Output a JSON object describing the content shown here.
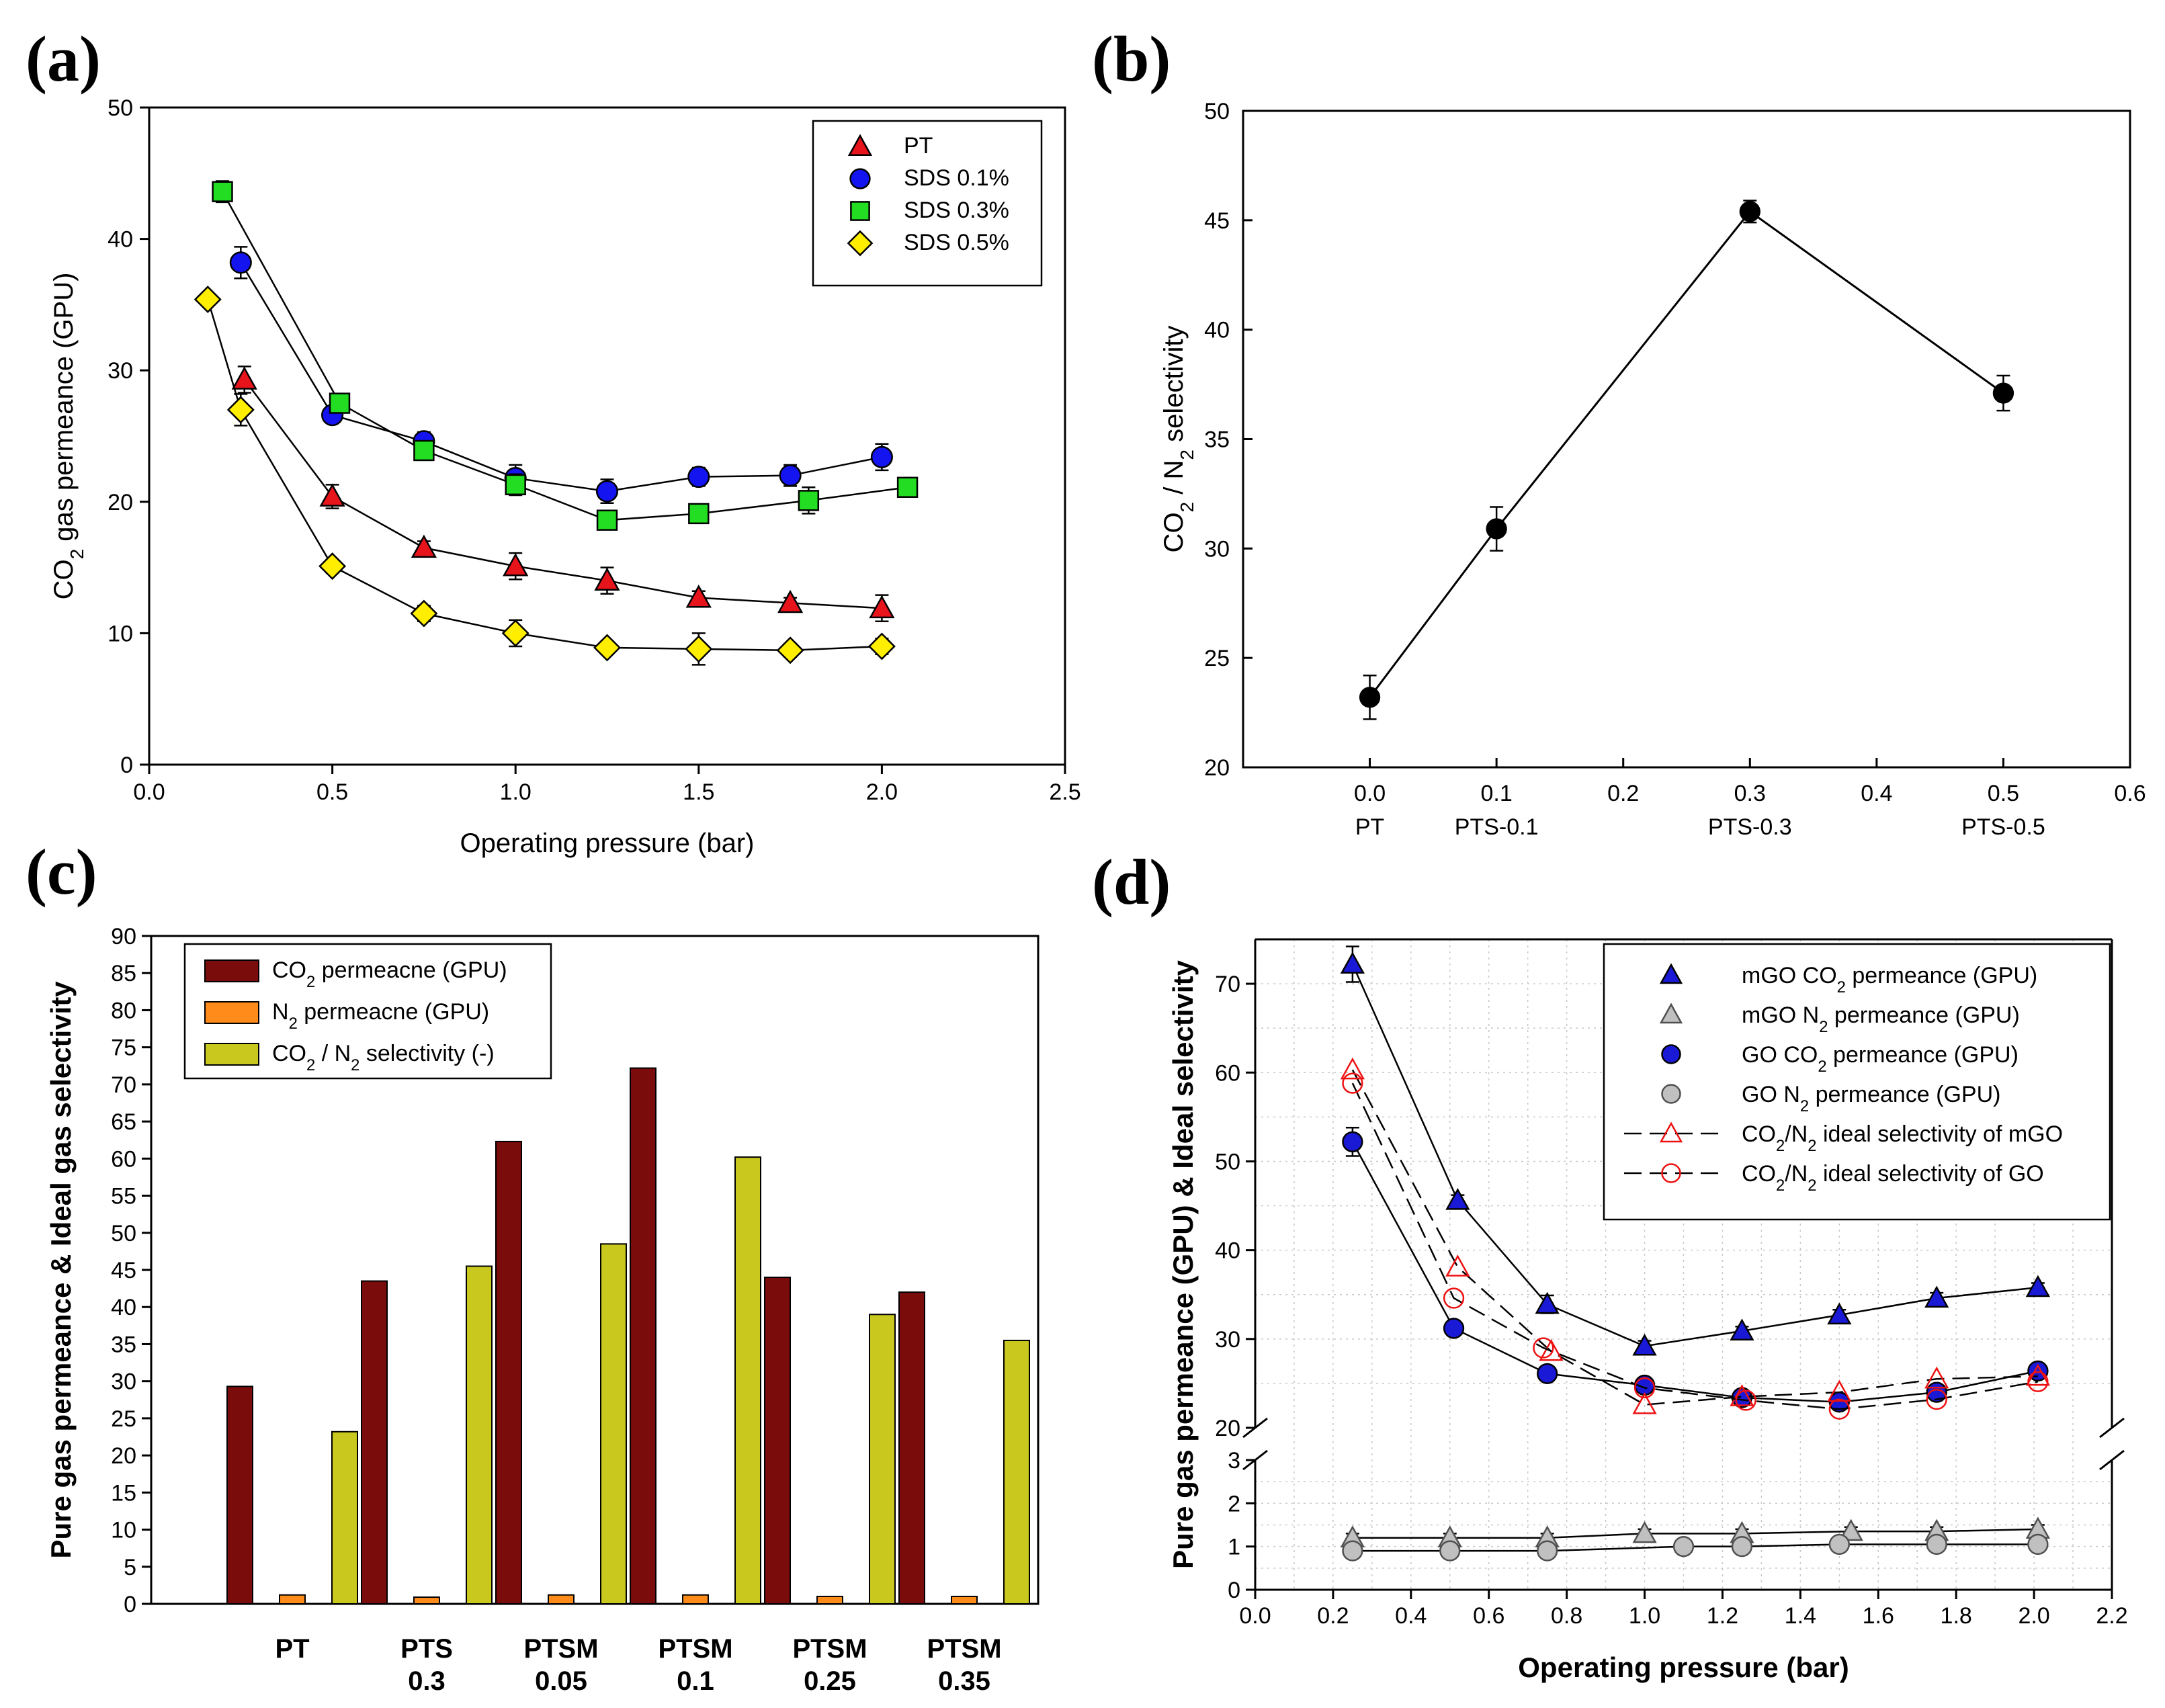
{
  "panels": {
    "a": "(a)",
    "b": "(b)",
    "c": "(c)",
    "d": "(d)"
  },
  "chart_data": [
    {
      "id": "a",
      "type": "line",
      "xlabel": "Operating pressure (bar)",
      "ylabel": "CO2 gas permeance (GPU)",
      "xlim": [
        0,
        2.5
      ],
      "ylim": [
        0,
        50
      ],
      "xticks": [
        "0.0",
        "0.5",
        "1.0",
        "1.5",
        "2.0",
        "2.5"
      ],
      "yticks": [
        "0",
        "10",
        "20",
        "30",
        "40",
        "50"
      ],
      "legend_position": "top-right",
      "series": [
        {
          "name": "PT",
          "marker": "triangle",
          "color": "#e8141c",
          "x": [
            0.26,
            0.5,
            0.75,
            1.0,
            1.25,
            1.5,
            1.75,
            2.0
          ],
          "y": [
            29.3,
            20.4,
            16.5,
            15.1,
            14.0,
            12.7,
            12.3,
            11.9
          ],
          "err": [
            1.0,
            0.9,
            0.5,
            1.0,
            1.0,
            0.5,
            0.4,
            1.0
          ]
        },
        {
          "name": "SDS 0.1%",
          "marker": "circle",
          "color": "#1414f0",
          "x": [
            0.25,
            0.5,
            0.75,
            1.0,
            1.25,
            1.5,
            1.75,
            2.0
          ],
          "y": [
            38.2,
            26.6,
            24.6,
            21.8,
            20.8,
            21.9,
            22.0,
            23.4
          ],
          "err": [
            1.2,
            0.6,
            0.7,
            1.0,
            0.9,
            0.7,
            0.8,
            1.0
          ]
        },
        {
          "name": "SDS 0.3%",
          "marker": "square",
          "color": "#22dd22",
          "x": [
            0.2,
            0.52,
            0.75,
            1.0,
            1.25,
            1.5,
            1.8,
            2.07
          ],
          "y": [
            43.6,
            27.5,
            23.9,
            21.3,
            18.6,
            19.1,
            20.1,
            21.1
          ],
          "err": [
            0.8,
            0.6,
            0.7,
            0.8,
            0.6,
            0.6,
            1.0,
            0.5
          ]
        },
        {
          "name": "SDS 0.5%",
          "marker": "diamond",
          "color": "#ffee00",
          "x": [
            0.16,
            0.25,
            0.5,
            0.75,
            1.0,
            1.25,
            1.5,
            1.75,
            2.0
          ],
          "y": [
            35.4,
            27.0,
            15.1,
            11.5,
            10.0,
            8.9,
            8.8,
            8.7,
            9.0
          ],
          "err": [
            0.3,
            1.2,
            0.5,
            0.6,
            1.0,
            0.5,
            1.2,
            0.5,
            0.6
          ]
        }
      ]
    },
    {
      "id": "b",
      "type": "line",
      "xlabel": "",
      "ylabel": "CO2 / N2 selectivity",
      "xlim": [
        -0.1,
        0.6
      ],
      "ylim": [
        20,
        50
      ],
      "xticks": [
        "0.0",
        "0.1",
        "0.2",
        "0.3",
        "0.4",
        "0.5",
        "0.6"
      ],
      "yticks": [
        "20",
        "25",
        "30",
        "35",
        "40",
        "45",
        "50"
      ],
      "category_labels": [
        {
          "x": 0.0,
          "label": "PT"
        },
        {
          "x": 0.1,
          "label": "PTS-0.1"
        },
        {
          "x": 0.3,
          "label": "PTS-0.3"
        },
        {
          "x": 0.5,
          "label": "PTS-0.5"
        }
      ],
      "series": [
        {
          "name": "selectivity",
          "marker": "circle",
          "color": "#000000",
          "x": [
            0.0,
            0.1,
            0.3,
            0.5
          ],
          "y": [
            23.2,
            30.9,
            45.4,
            37.1
          ],
          "err": [
            1.0,
            1.0,
            0.5,
            0.8
          ]
        }
      ]
    },
    {
      "id": "c",
      "type": "bar",
      "xlabel": "",
      "ylabel": "Pure gas permeance & Ideal gas selectivity",
      "ylim": [
        0,
        90
      ],
      "yticks": [
        "0",
        "5",
        "10",
        "15",
        "20",
        "25",
        "30",
        "35",
        "40",
        "45",
        "50",
        "55",
        "60",
        "65",
        "70",
        "75",
        "80",
        "85",
        "90"
      ],
      "categories": [
        {
          "line1": "PT",
          "line2": ""
        },
        {
          "line1": "PTS",
          "line2": "0.3"
        },
        {
          "line1": "PTSM",
          "line2": "0.05"
        },
        {
          "line1": "PTSM",
          "line2": "0.1"
        },
        {
          "line1": "PTSM",
          "line2": "0.25"
        },
        {
          "line1": "PTSM",
          "line2": "0.35"
        }
      ],
      "legend_position": "top-left",
      "series": [
        {
          "name": "CO2 permeacne  (GPU)",
          "color": "#7b0c0c",
          "values": [
            29.3,
            43.5,
            62.3,
            72.2,
            44.0,
            42.0
          ]
        },
        {
          "name": "N2 permeacne  (GPU)",
          "color": "#ff8c1a",
          "values": [
            1.2,
            0.9,
            1.2,
            1.2,
            1.0,
            1.0
          ]
        },
        {
          "name": "CO2 / N2 selectivity (-)",
          "color": "#c8c81e",
          "values": [
            23.2,
            45.5,
            48.5,
            60.2,
            39.0,
            35.5
          ]
        }
      ]
    },
    {
      "id": "d",
      "type": "line",
      "xlabel": "Operating pressure (bar)",
      "ylabel": "Pure gas permeance (GPU) & Ideal selectivity",
      "xlim": [
        0,
        2.2
      ],
      "ylim_upper": [
        20,
        75
      ],
      "ylim_lower": [
        0,
        3
      ],
      "xticks": [
        "0.0",
        "0.2",
        "0.4",
        "0.6",
        "0.8",
        "1.0",
        "1.2",
        "1.4",
        "1.6",
        "1.8",
        "2.0",
        "2.2"
      ],
      "yticks_upper": [
        "20",
        "30",
        "40",
        "50",
        "60",
        "70"
      ],
      "yticks_lower": [
        "0",
        "1",
        "2",
        "3"
      ],
      "legend_position": "top-right",
      "series": [
        {
          "name": "mGO CO2 permeance (GPU)",
          "marker": "triangle",
          "fill": "#1a1ad6",
          "stroke": "#000000",
          "dash": false,
          "x": [
            0.25,
            0.52,
            0.75,
            1.0,
            1.25,
            1.5,
            1.75,
            2.01
          ],
          "y": [
            72.2,
            45.6,
            33.9,
            29.2,
            30.9,
            32.7,
            34.6,
            35.8
          ],
          "err": [
            2.0,
            0.6,
            1.0,
            0.6,
            0.5,
            0.6,
            0.6,
            0.5
          ]
        },
        {
          "name": "mGO    N2 permeance (GPU)",
          "marker": "triangle",
          "fill": "#c0c0c0",
          "stroke": "#505050",
          "dash": false,
          "x": [
            0.25,
            0.5,
            0.75,
            1.0,
            1.25,
            1.53,
            1.75,
            2.01
          ],
          "y": [
            1.2,
            1.2,
            1.2,
            1.3,
            1.3,
            1.35,
            1.35,
            1.4
          ],
          "err": [
            0.1,
            0.1,
            0.1,
            0.1,
            0.1,
            0.1,
            0.1,
            0.1
          ]
        },
        {
          "name": "GO     CO2 permeance (GPU)",
          "marker": "circle",
          "fill": "#1a1ad6",
          "stroke": "#000000",
          "dash": false,
          "x": [
            0.25,
            0.51,
            0.75,
            1.0,
            1.25,
            1.5,
            1.75,
            2.01
          ],
          "y": [
            52.2,
            31.2,
            26.1,
            24.8,
            23.4,
            22.9,
            24.0,
            26.4
          ],
          "err": [
            1.6,
            0.5,
            0.5,
            0.6,
            0.5,
            0.6,
            0.6,
            0.5
          ]
        },
        {
          "name": "GO          N2 permeance (GPU)",
          "marker": "circle",
          "fill": "#c0c0c0",
          "stroke": "#505050",
          "dash": false,
          "x": [
            0.25,
            0.5,
            0.75,
            1.1,
            1.25,
            1.5,
            1.75,
            2.01
          ],
          "y": [
            0.9,
            0.9,
            0.9,
            1.0,
            1.0,
            1.05,
            1.05,
            1.05
          ],
          "err": [
            0.1,
            0.1,
            0.1,
            0.1,
            0.1,
            0.1,
            0.1,
            0.1
          ]
        },
        {
          "name": "CO2/N2 ideal selectivity of mGO",
          "marker": "open-triangle",
          "fill": "none",
          "stroke": "#ee1111",
          "dash": true,
          "x": [
            0.25,
            0.52,
            0.76,
            1.0,
            1.25,
            1.5,
            1.75,
            2.01
          ],
          "y": [
            60.3,
            38.1,
            28.6,
            22.6,
            23.5,
            24.0,
            25.5,
            25.8
          ],
          "err": [
            0,
            0,
            0,
            0,
            0,
            0,
            0,
            0
          ]
        },
        {
          "name": "CO2/N2 ideal selectivity of GO",
          "marker": "open-circle",
          "fill": "none",
          "stroke": "#ee1111",
          "dash": true,
          "x": [
            0.25,
            0.51,
            0.74,
            1.0,
            1.26,
            1.5,
            1.75,
            2.01
          ],
          "y": [
            58.8,
            34.6,
            29.0,
            24.5,
            23.1,
            22.1,
            23.2,
            25.2
          ],
          "err": [
            0,
            0,
            0,
            0,
            0,
            0,
            0,
            0
          ]
        }
      ]
    }
  ]
}
